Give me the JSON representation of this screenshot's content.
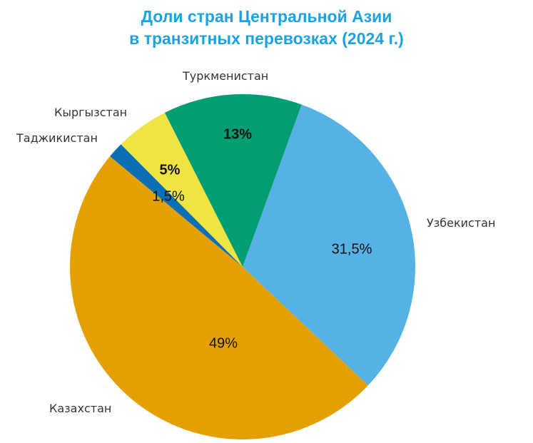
{
  "title": {
    "line1": "Доли стран Центральной Азии",
    "line2": "в транзитных перевозках (2024 г.)"
  },
  "chart_data": {
    "type": "pie",
    "title": "Доли стран Центральной Азии в транзитных перевозках (2024 г.)",
    "start_angle_deg": 20,
    "direction": "clockwise",
    "slices": [
      {
        "label": "Узбекистан",
        "value": 31.5,
        "display": "31,5%",
        "color": "#56b1e5",
        "bold": false
      },
      {
        "label": "Казахстан",
        "value": 49,
        "display": "49%",
        "color": "#e4a000",
        "bold": false
      },
      {
        "label": "Таджикистан",
        "value": 1.5,
        "display": "1,5%",
        "color": "#0a6fb5",
        "bold": false
      },
      {
        "label": "Кыргызстан",
        "value": 5,
        "display": "5%",
        "color": "#f0e442",
        "bold": true
      },
      {
        "label": "Туркменистан",
        "value": 13,
        "display": "13%",
        "color": "#019e73",
        "bold": true
      }
    ]
  }
}
